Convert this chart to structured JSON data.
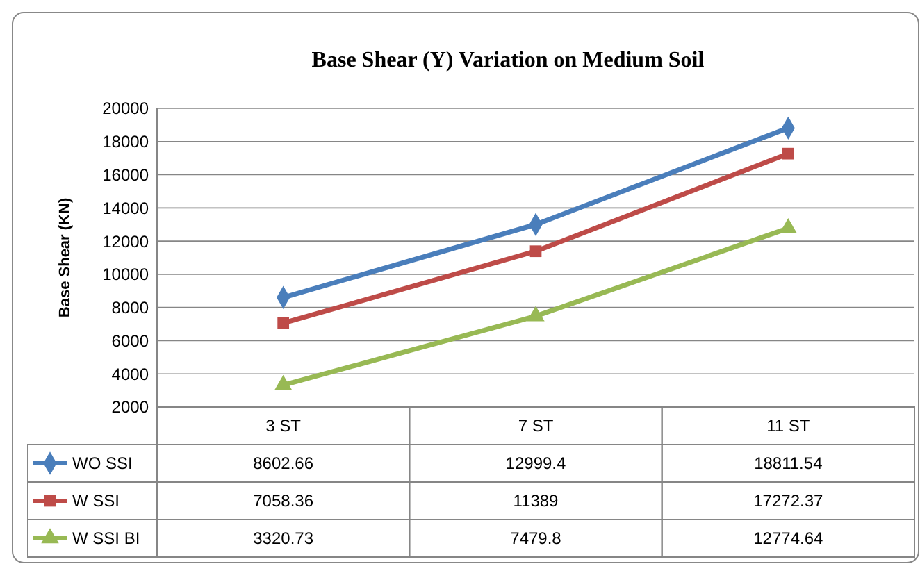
{
  "chart_data": {
    "type": "line",
    "title": "Base Shear (Y) Variation on Medium Soil",
    "ylabel": "Base Shear (KN)",
    "categories": [
      "3 ST",
      "7 ST",
      "11 ST"
    ],
    "series": [
      {
        "name": "WO SSI",
        "color": "#4a7ebb",
        "marker": "diamond",
        "values": [
          8602.66,
          12999.4,
          18811.54
        ]
      },
      {
        "name": "W SSI",
        "color": "#be4b48",
        "marker": "square",
        "values": [
          7058.36,
          11389,
          17272.37
        ]
      },
      {
        "name": "W SSI BI",
        "color": "#98b954",
        "marker": "triangle",
        "values": [
          3320.73,
          7479.8,
          12774.64
        ]
      }
    ],
    "ylim": [
      2000,
      20000
    ],
    "yticks": [
      2000,
      4000,
      6000,
      8000,
      10000,
      12000,
      14000,
      16000,
      18000,
      20000
    ],
    "grid": "y",
    "legend": "bottom",
    "data_labels": true
  }
}
